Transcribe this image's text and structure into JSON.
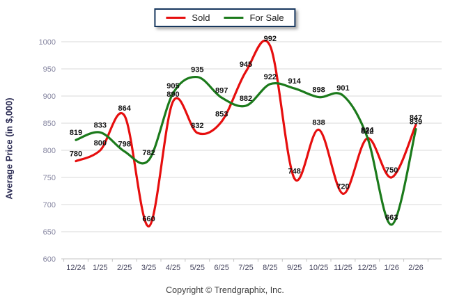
{
  "legend": {
    "items": [
      {
        "label": "Sold",
        "color": "#e60e0e"
      },
      {
        "label": "For Sale",
        "color": "#1b7a1b"
      }
    ]
  },
  "footer": {
    "copyright": "Copyright © Trendgraphix, Inc."
  },
  "chart_data": {
    "type": "line",
    "title": "",
    "ylabel": "Average Price (in $,000)",
    "xlabel": "",
    "ylim": [
      600,
      1000
    ],
    "ytick_step": 50,
    "grid": true,
    "legend_position": "top-center",
    "categories": [
      "12/24",
      "1/25",
      "2/25",
      "3/25",
      "4/25",
      "5/25",
      "6/25",
      "7/25",
      "8/25",
      "9/25",
      "10/25",
      "11/25",
      "12/25",
      "1/26",
      "2/26"
    ],
    "series": [
      {
        "name": "Sold",
        "color": "#e60e0e",
        "values": [
          780,
          800,
          864,
          660,
          890,
          832,
          853,
          945,
          992,
          748,
          838,
          720,
          822,
          750,
          847
        ]
      },
      {
        "name": "For Sale",
        "color": "#1b7a1b",
        "values": [
          819,
          833,
          798,
          782,
          905,
          935,
          897,
          882,
          922,
          914,
          898,
          901,
          824,
          663,
          839
        ]
      }
    ],
    "styles": {
      "grid_color": "#d9d9d9",
      "axis_color": "#c4c4c4",
      "ytick_color": "#8585a0",
      "xtick_color": "#46465f",
      "label_color": "#111111"
    }
  }
}
